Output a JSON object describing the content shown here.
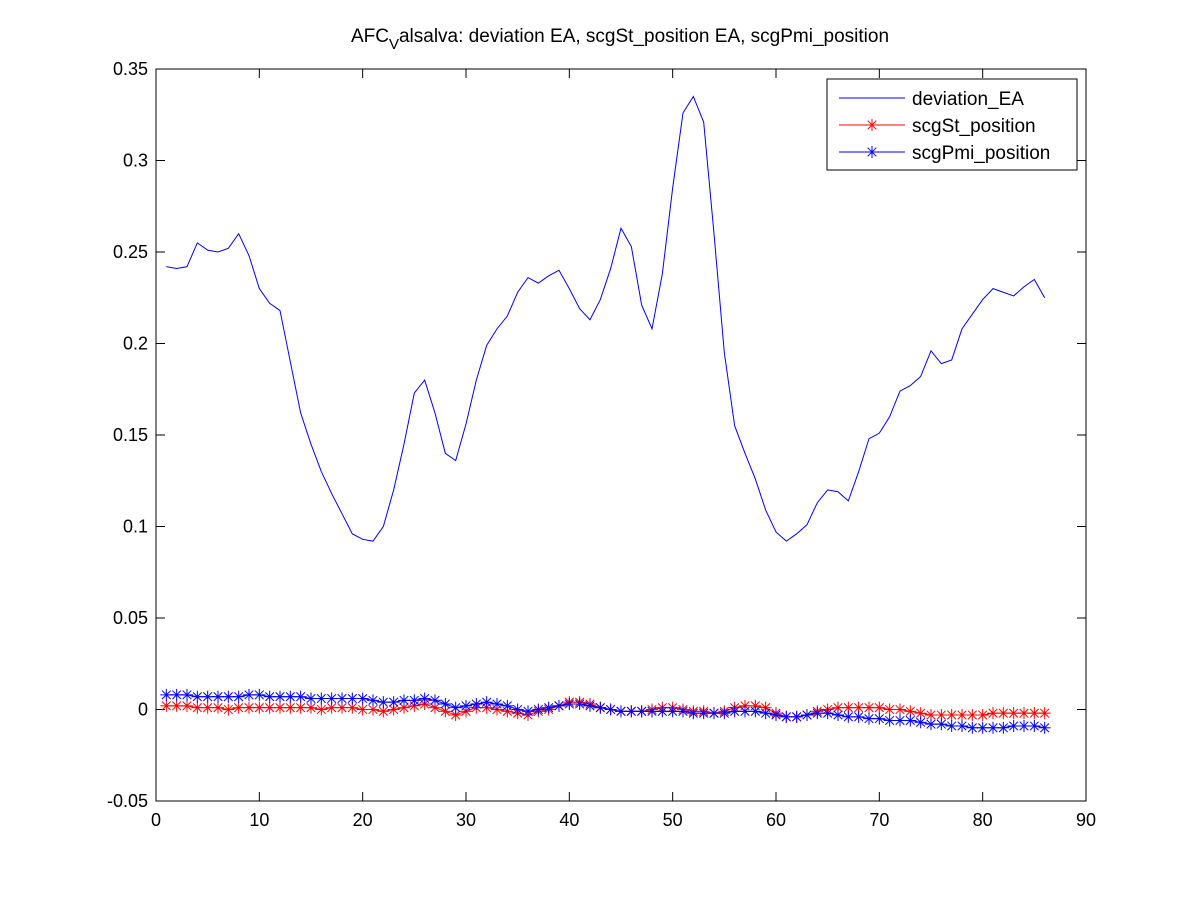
{
  "chart_data": {
    "type": "line",
    "title": {
      "prefix": "AFC",
      "subscript": "V",
      "suffix": "alsalva: deviation EA, scgSt_position EA, scgPmi_position"
    },
    "xlabel": "",
    "ylabel": "",
    "xlim": [
      0,
      90
    ],
    "ylim": [
      -0.05,
      0.35
    ],
    "xticks": [
      0,
      10,
      20,
      30,
      40,
      50,
      60,
      70,
      80,
      90
    ],
    "xtick_labels": [
      "0",
      "10",
      "20",
      "30",
      "40",
      "50",
      "60",
      "70",
      "80",
      "90"
    ],
    "yticks": [
      -0.05,
      0,
      0.05,
      0.1,
      0.15,
      0.2,
      0.25,
      0.3,
      0.35
    ],
    "ytick_labels": [
      "-0.05",
      "0",
      "0.05",
      "0.1",
      "0.15",
      "0.2",
      "0.25",
      "0.3",
      "0.35"
    ],
    "grid": false,
    "legend_position": "top-right",
    "x": [
      1,
      2,
      3,
      4,
      5,
      6,
      7,
      8,
      9,
      10,
      11,
      12,
      13,
      14,
      15,
      16,
      17,
      18,
      19,
      20,
      21,
      22,
      23,
      24,
      25,
      26,
      27,
      28,
      29,
      30,
      31,
      32,
      33,
      34,
      35,
      36,
      37,
      38,
      39,
      40,
      41,
      42,
      43,
      44,
      45,
      46,
      47,
      48,
      49,
      50,
      51,
      52,
      53,
      54,
      55,
      56,
      57,
      58,
      59,
      60,
      61,
      62,
      63,
      64,
      65,
      66,
      67,
      68,
      69,
      70,
      71,
      72,
      73,
      74,
      75,
      76,
      77,
      78,
      79,
      80,
      81,
      82,
      83,
      84,
      85,
      86
    ],
    "series": [
      {
        "name": "deviation_EA",
        "color": "#0000ff",
        "marker": "none",
        "values": [
          0.242,
          0.241,
          0.242,
          0.255,
          0.251,
          0.25,
          0.252,
          0.26,
          0.248,
          0.23,
          0.222,
          0.218,
          0.19,
          0.162,
          0.145,
          0.13,
          0.118,
          0.107,
          0.096,
          0.093,
          0.092,
          0.1,
          0.12,
          0.145,
          0.173,
          0.18,
          0.162,
          0.14,
          0.136,
          0.156,
          0.18,
          0.199,
          0.208,
          0.215,
          0.228,
          0.236,
          0.233,
          0.237,
          0.24,
          0.23,
          0.219,
          0.213,
          0.224,
          0.241,
          0.263,
          0.253,
          0.221,
          0.208,
          0.238,
          0.285,
          0.326,
          0.335,
          0.321,
          0.26,
          0.195,
          0.155,
          0.14,
          0.126,
          0.109,
          0.097,
          0.092,
          0.096,
          0.101,
          0.113,
          0.12,
          0.119,
          0.114,
          0.13,
          0.148,
          0.151,
          0.16,
          0.174,
          0.177,
          0.182,
          0.196,
          0.189,
          0.191,
          0.208,
          0.216,
          0.224,
          0.23,
          0.228,
          0.226,
          0.231,
          0.235,
          0.225
        ]
      },
      {
        "name": "scgSt_position",
        "color": "#ff0000",
        "marker": "asterisk",
        "values": [
          0.002,
          0.002,
          0.002,
          0.001,
          0.001,
          0.001,
          0.0,
          0.001,
          0.001,
          0.001,
          0.001,
          0.001,
          0.001,
          0.001,
          0.001,
          0.0,
          0.001,
          0.001,
          0.001,
          0.0,
          0.0,
          -0.001,
          0.0,
          0.001,
          0.002,
          0.003,
          0.001,
          -0.001,
          -0.003,
          -0.001,
          0.001,
          0.001,
          0.0,
          -0.001,
          -0.002,
          -0.003,
          -0.001,
          0.0,
          0.002,
          0.004,
          0.004,
          0.003,
          0.001,
          0.0,
          -0.001,
          -0.001,
          -0.001,
          0.0,
          0.001,
          0.001,
          0.0,
          -0.001,
          -0.001,
          -0.002,
          -0.001,
          0.001,
          0.002,
          0.002,
          0.001,
          -0.002,
          -0.004,
          -0.004,
          -0.003,
          -0.001,
          0.0,
          0.001,
          0.001,
          0.001,
          0.001,
          0.001,
          0.0,
          0.0,
          -0.001,
          -0.002,
          -0.003,
          -0.003,
          -0.003,
          -0.003,
          -0.003,
          -0.003,
          -0.002,
          -0.002,
          -0.002,
          -0.002,
          -0.002,
          -0.002
        ]
      },
      {
        "name": "scgPmi_position",
        "color": "#0000ff",
        "marker": "asterisk",
        "values": [
          0.008,
          0.008,
          0.008,
          0.007,
          0.007,
          0.007,
          0.007,
          0.007,
          0.008,
          0.008,
          0.007,
          0.007,
          0.007,
          0.007,
          0.006,
          0.006,
          0.006,
          0.006,
          0.006,
          0.006,
          0.005,
          0.004,
          0.004,
          0.005,
          0.005,
          0.006,
          0.005,
          0.003,
          0.001,
          0.002,
          0.003,
          0.004,
          0.003,
          0.002,
          0.0,
          -0.001,
          0.0,
          0.001,
          0.002,
          0.003,
          0.003,
          0.002,
          0.001,
          0.0,
          -0.001,
          -0.001,
          -0.001,
          -0.001,
          -0.001,
          -0.001,
          -0.001,
          -0.002,
          -0.002,
          -0.002,
          -0.002,
          -0.001,
          -0.001,
          -0.001,
          -0.002,
          -0.003,
          -0.004,
          -0.004,
          -0.003,
          -0.002,
          -0.002,
          -0.003,
          -0.004,
          -0.004,
          -0.005,
          -0.005,
          -0.006,
          -0.006,
          -0.006,
          -0.007,
          -0.008,
          -0.008,
          -0.009,
          -0.009,
          -0.01,
          -0.01,
          -0.01,
          -0.01,
          -0.009,
          -0.009,
          -0.009,
          -0.01
        ]
      }
    ]
  }
}
